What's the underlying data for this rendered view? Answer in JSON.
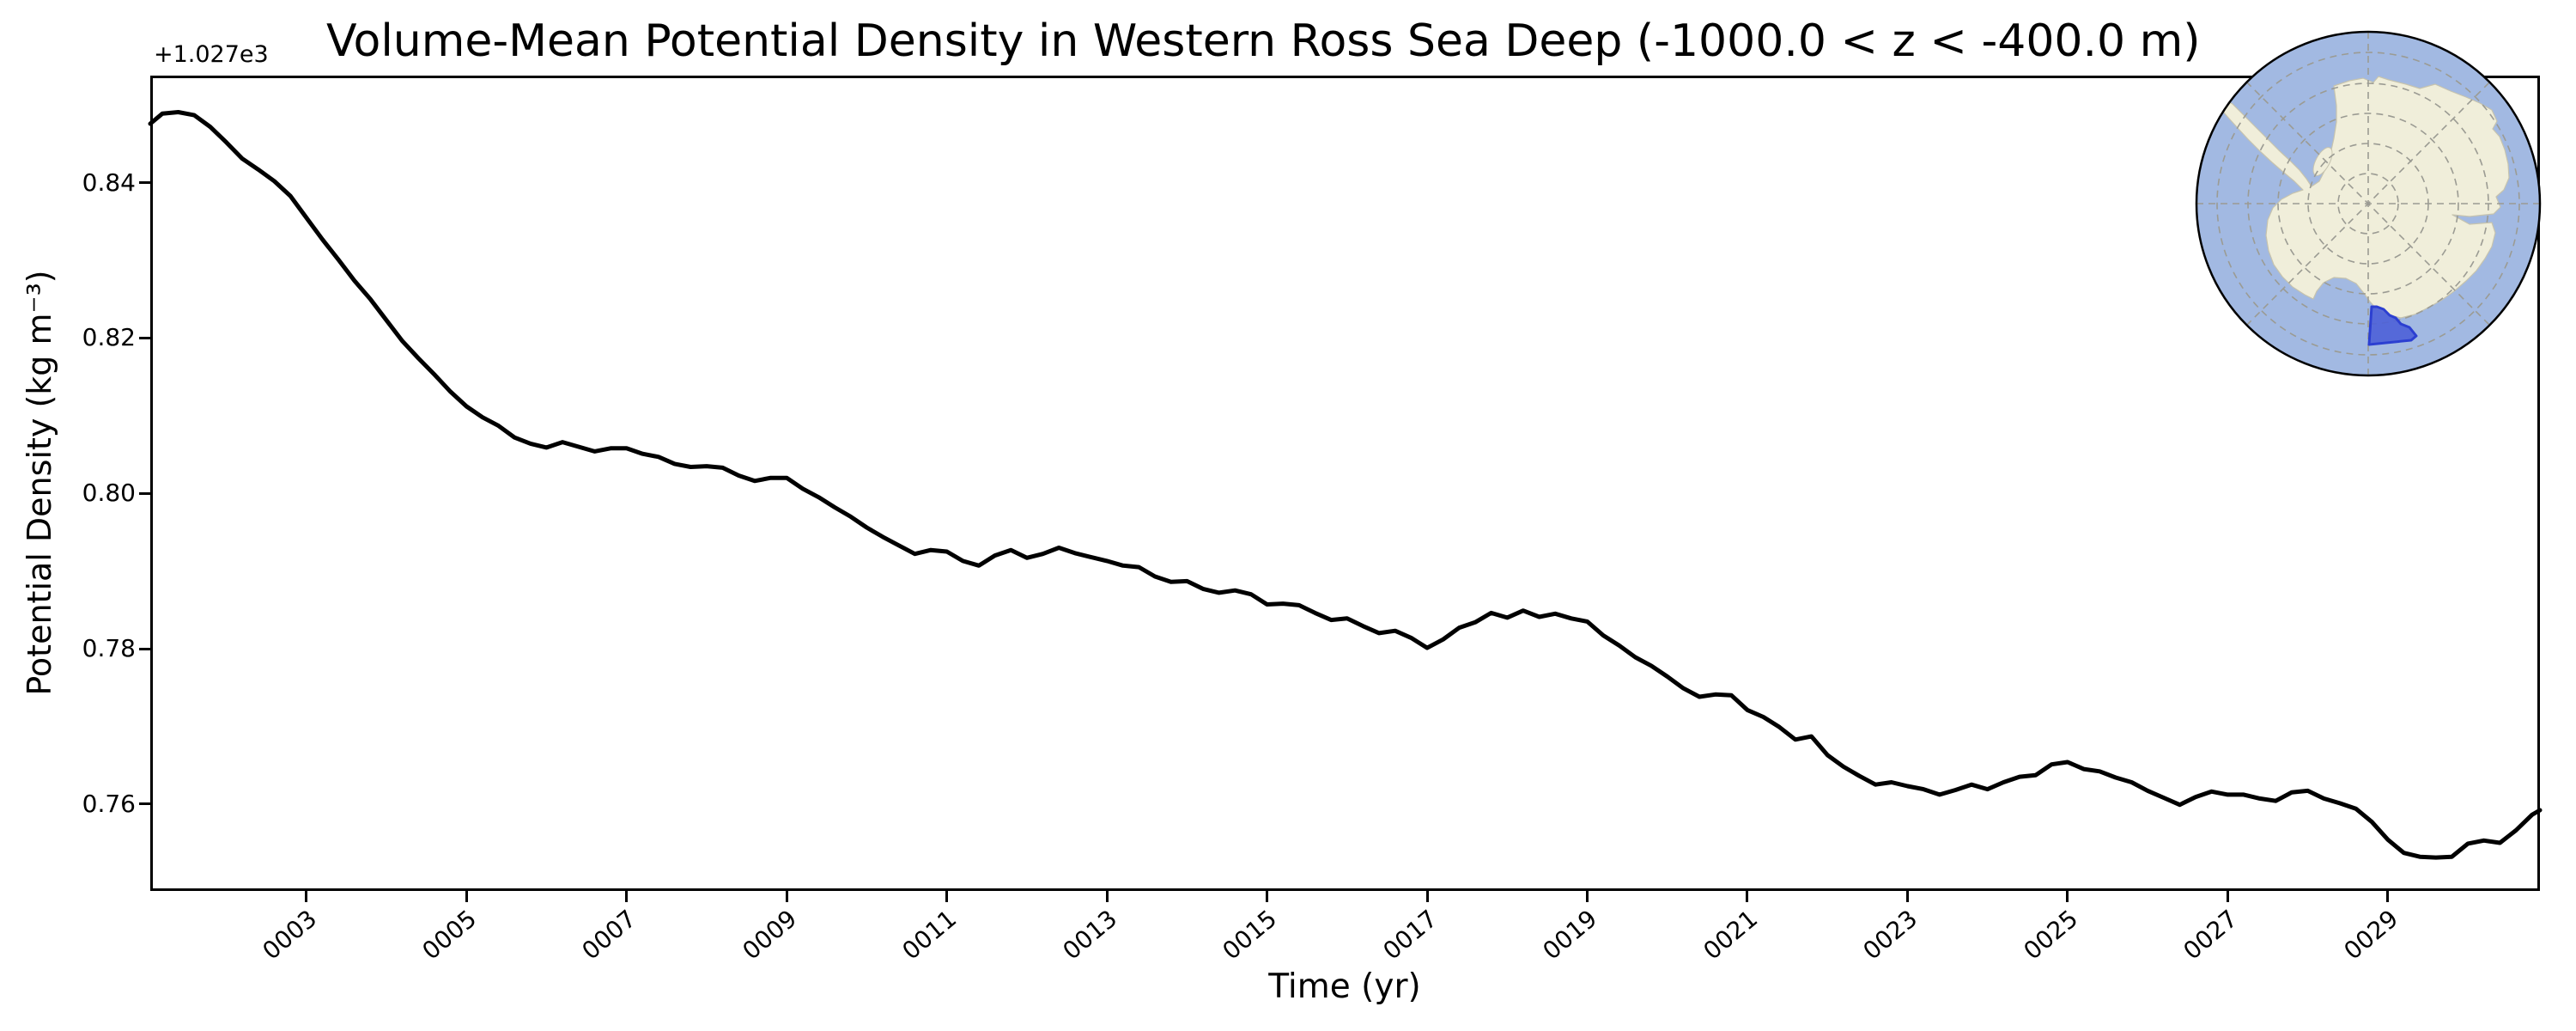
{
  "chart_data": {
    "type": "line",
    "title": "Volume-Mean Potential Density in Western Ross Sea Deep (-1000.0 < z < -400.0 m)",
    "xlabel": "Time (yr)",
    "ylabel": "Potential Density (kg m⁻³)",
    "y_axis_offset_label": "+1.027e3",
    "grid": false,
    "legend": null,
    "line_color": "#000000",
    "background_color": "#ffffff",
    "xlim_years": [
      1.05,
      30.9
    ],
    "ylim": [
      1027.7488,
      1027.8538
    ],
    "x_tick_years": [
      3,
      5,
      7,
      9,
      11,
      13,
      15,
      17,
      19,
      21,
      23,
      25,
      27,
      29
    ],
    "x_tick_labels": [
      "0003",
      "0005",
      "0007",
      "0009",
      "0011",
      "0013",
      "0015",
      "0017",
      "0019",
      "0021",
      "0023",
      "0025",
      "0027",
      "0029"
    ],
    "x_tick_rotation_deg": 40,
    "y_tick_values": [
      1027.76,
      1027.78,
      1027.8,
      1027.82,
      1027.84
    ],
    "y_tick_labels": [
      "0.76",
      "0.78",
      "0.80",
      "0.82",
      "0.84"
    ],
    "series": [
      {
        "name": "volume-mean potential density",
        "units": "kg m-3",
        "x_years": [
          1.05,
          1.2,
          1.4,
          1.6,
          1.8,
          2.0,
          2.2,
          2.4,
          2.6,
          2.8,
          3.0,
          3.2,
          3.4,
          3.6,
          3.8,
          4.0,
          4.2,
          4.4,
          4.6,
          4.8,
          5.0,
          5.2,
          5.4,
          5.6,
          5.8,
          6.0,
          6.2,
          6.4,
          6.6,
          6.8,
          7.0,
          7.2,
          7.4,
          7.6,
          7.8,
          8.0,
          8.2,
          8.4,
          8.6,
          8.8,
          9.0,
          9.2,
          9.4,
          9.6,
          9.8,
          10.0,
          10.2,
          10.4,
          10.6,
          10.8,
          11.0,
          11.2,
          11.4,
          11.6,
          11.8,
          12.0,
          12.2,
          12.4,
          12.6,
          12.8,
          13.0,
          13.2,
          13.4,
          13.6,
          13.8,
          14.0,
          14.2,
          14.4,
          14.6,
          14.8,
          15.0,
          15.2,
          15.4,
          15.6,
          15.8,
          16.0,
          16.2,
          16.4,
          16.6,
          16.8,
          17.0,
          17.2,
          17.4,
          17.6,
          17.8,
          18.0,
          18.2,
          18.4,
          18.6,
          18.8,
          19.0,
          19.2,
          19.4,
          19.6,
          19.8,
          20.0,
          20.2,
          20.4,
          20.6,
          20.8,
          21.0,
          21.2,
          21.4,
          21.6,
          21.8,
          22.0,
          22.2,
          22.4,
          22.6,
          22.8,
          23.0,
          23.2,
          23.4,
          23.6,
          23.8,
          24.0,
          24.2,
          24.4,
          24.6,
          24.8,
          25.0,
          25.2,
          25.4,
          25.6,
          25.8,
          26.0,
          26.2,
          26.4,
          26.6,
          26.8,
          27.0,
          27.2,
          27.4,
          27.6,
          27.8,
          28.0,
          28.2,
          28.4,
          28.6,
          28.8,
          29.0,
          29.2,
          29.4,
          29.6,
          29.8,
          30.0,
          30.2,
          30.4,
          30.6,
          30.8,
          30.9
        ],
        "y_kg_m3": [
          1027.8476,
          1027.8489,
          1027.8491,
          1027.8487,
          1027.8472,
          1027.8452,
          1027.8431,
          1027.8417,
          1027.8402,
          1027.8383,
          1027.8355,
          1027.8327,
          1027.8301,
          1027.8274,
          1027.825,
          1027.8223,
          1027.8196,
          1027.8174,
          1027.8153,
          1027.8131,
          1027.8112,
          1027.8098,
          1027.8087,
          1027.8072,
          1027.8064,
          1027.8059,
          1027.8066,
          1027.806,
          1027.8054,
          1027.8058,
          1027.8058,
          1027.8051,
          1027.8047,
          1027.8038,
          1027.8034,
          1027.8035,
          1027.8033,
          1027.8023,
          1027.8016,
          1027.802,
          1027.802,
          1027.8006,
          1027.7995,
          1027.7982,
          1027.797,
          1027.7956,
          1027.7944,
          1027.7933,
          1027.7922,
          1027.7927,
          1027.7925,
          1027.7913,
          1027.7907,
          1027.792,
          1027.7927,
          1027.7917,
          1027.7922,
          1027.793,
          1027.7923,
          1027.7918,
          1027.7913,
          1027.7907,
          1027.7905,
          1027.7893,
          1027.7886,
          1027.7887,
          1027.7877,
          1027.7872,
          1027.7875,
          1027.787,
          1027.7857,
          1027.7858,
          1027.7856,
          1027.7846,
          1027.7837,
          1027.7839,
          1027.7829,
          1027.782,
          1027.7823,
          1027.7814,
          1027.7801,
          1027.7812,
          1027.7827,
          1027.7834,
          1027.7846,
          1027.784,
          1027.7849,
          1027.7841,
          1027.7845,
          1027.7839,
          1027.7835,
          1027.7817,
          1027.7804,
          1027.7789,
          1027.7778,
          1027.7764,
          1027.7749,
          1027.7738,
          1027.7741,
          1027.774,
          1027.7721,
          1027.7712,
          1027.7699,
          1027.7683,
          1027.7687,
          1027.7663,
          1027.7648,
          1027.7636,
          1027.7625,
          1027.7628,
          1027.7623,
          1027.7619,
          1027.7612,
          1027.7618,
          1027.7625,
          1027.7619,
          1027.7628,
          1027.7635,
          1027.7637,
          1027.7651,
          1027.7654,
          1027.7645,
          1027.7642,
          1027.7634,
          1027.7628,
          1027.7617,
          1027.7608,
          1027.7599,
          1027.7609,
          1027.7616,
          1027.7612,
          1027.7612,
          1027.7607,
          1027.7604,
          1027.7615,
          1027.7617,
          1027.7607,
          1027.7601,
          1027.7594,
          1027.7577,
          1027.7554,
          1027.7537,
          1027.7532,
          1027.7531,
          1027.7532,
          1027.7549,
          1027.7553,
          1027.755,
          1027.7566,
          1027.7586,
          1027.7592
        ]
      }
    ]
  },
  "inset_map": {
    "description": "South polar stereographic globe of Antarctica with highlighted study region",
    "highlighted_region": "Western Ross Sea",
    "ocean_color": "#a2b9e2",
    "land_color": "#f0eeda",
    "land_edge_color": "#c6c3ae",
    "region_fill_color": "#4d61d8",
    "region_edge_color": "#2c3fd1",
    "graticule_color": "#9b9b93",
    "outline_color": "#000000"
  }
}
